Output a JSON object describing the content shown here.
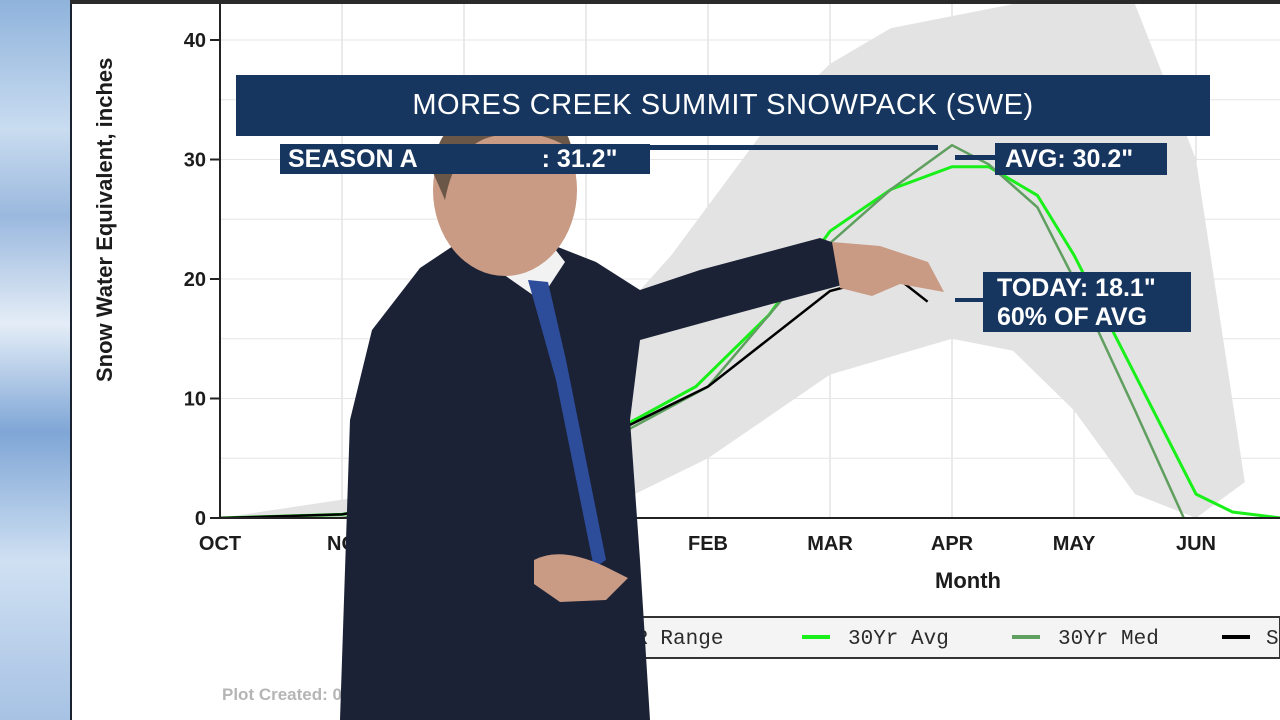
{
  "banners": {
    "title": "MORES CREEK SUMMIT SNOWPACK (SWE)",
    "season_max": "SEASON A",
    "season_max_value": ": 31.2\"",
    "avg": "AVG: 30.2\"",
    "today_line1": "TODAY: 18.1\"",
    "today_line2": "60% OF AVG"
  },
  "footer": {
    "plot_created": "Plot Created: 03"
  },
  "colors": {
    "banner": "#16365f",
    "avg_line": "#19f019",
    "median_line": "#5f9f5f",
    "current_line": "#000000",
    "range_fill": "#e3e3e3"
  },
  "chart_data": {
    "type": "line",
    "title": "",
    "xlabel": "Month",
    "ylabel": "Snow Water Equivalent, inches",
    "ylim": [
      0,
      40
    ],
    "yticks": [
      0,
      10,
      20,
      30,
      40
    ],
    "x_ticks": [
      "OCT",
      "NO",
      "FEB",
      "MAR",
      "APR",
      "MAY",
      "JUN"
    ],
    "x_tick_months": [
      0,
      1,
      4,
      5,
      6,
      7,
      8
    ],
    "legend": {
      "placement": "bottom",
      "entries": [
        "POR Range",
        "30Yr Avg",
        "30Yr Med",
        "S"
      ]
    },
    "grid": true,
    "range_upper": {
      "x": [
        0,
        1.3,
        2,
        3,
        3.7,
        4.5,
        5,
        5.5,
        6,
        6.5,
        7,
        7.5,
        8,
        8.4
      ],
      "y": [
        0,
        2,
        6,
        14,
        22,
        33,
        38,
        41,
        42,
        43,
        43,
        43,
        30,
        3
      ]
    },
    "range_lower": {
      "x": [
        0,
        1,
        2,
        3,
        4,
        5,
        6,
        6.5,
        7,
        7.5,
        8
      ],
      "y": [
        0,
        0,
        0,
        0,
        5,
        12,
        15,
        14,
        9,
        2,
        0
      ]
    },
    "series": [
      {
        "name": "30Yr Avg",
        "x": [
          0,
          1,
          2,
          3,
          3.9,
          4.5,
          5,
          5.5,
          6,
          6.3,
          6.7,
          7,
          7.5,
          8,
          8.3,
          8.7
        ],
        "y": [
          0,
          0.3,
          2,
          6,
          11,
          17,
          24,
          27.5,
          29.4,
          29.4,
          27,
          22,
          12,
          2,
          0.5,
          0
        ]
      },
      {
        "name": "30Yr Med",
        "x": [
          0,
          1,
          2,
          3,
          4,
          5,
          5.5,
          6,
          6.3,
          6.7,
          7,
          7.5,
          7.9
        ],
        "y": [
          0,
          0,
          1.5,
          5.5,
          11,
          23,
          27.5,
          31.2,
          29.6,
          26,
          20,
          9,
          0
        ]
      },
      {
        "name": "current",
        "x": [
          0,
          1,
          2,
          3,
          4,
          5,
          5.3,
          5.5,
          5.6,
          5.8
        ],
        "y": [
          0,
          0.3,
          2,
          6,
          11,
          19,
          19.8,
          20.7,
          19.7,
          18.1
        ]
      }
    ]
  }
}
